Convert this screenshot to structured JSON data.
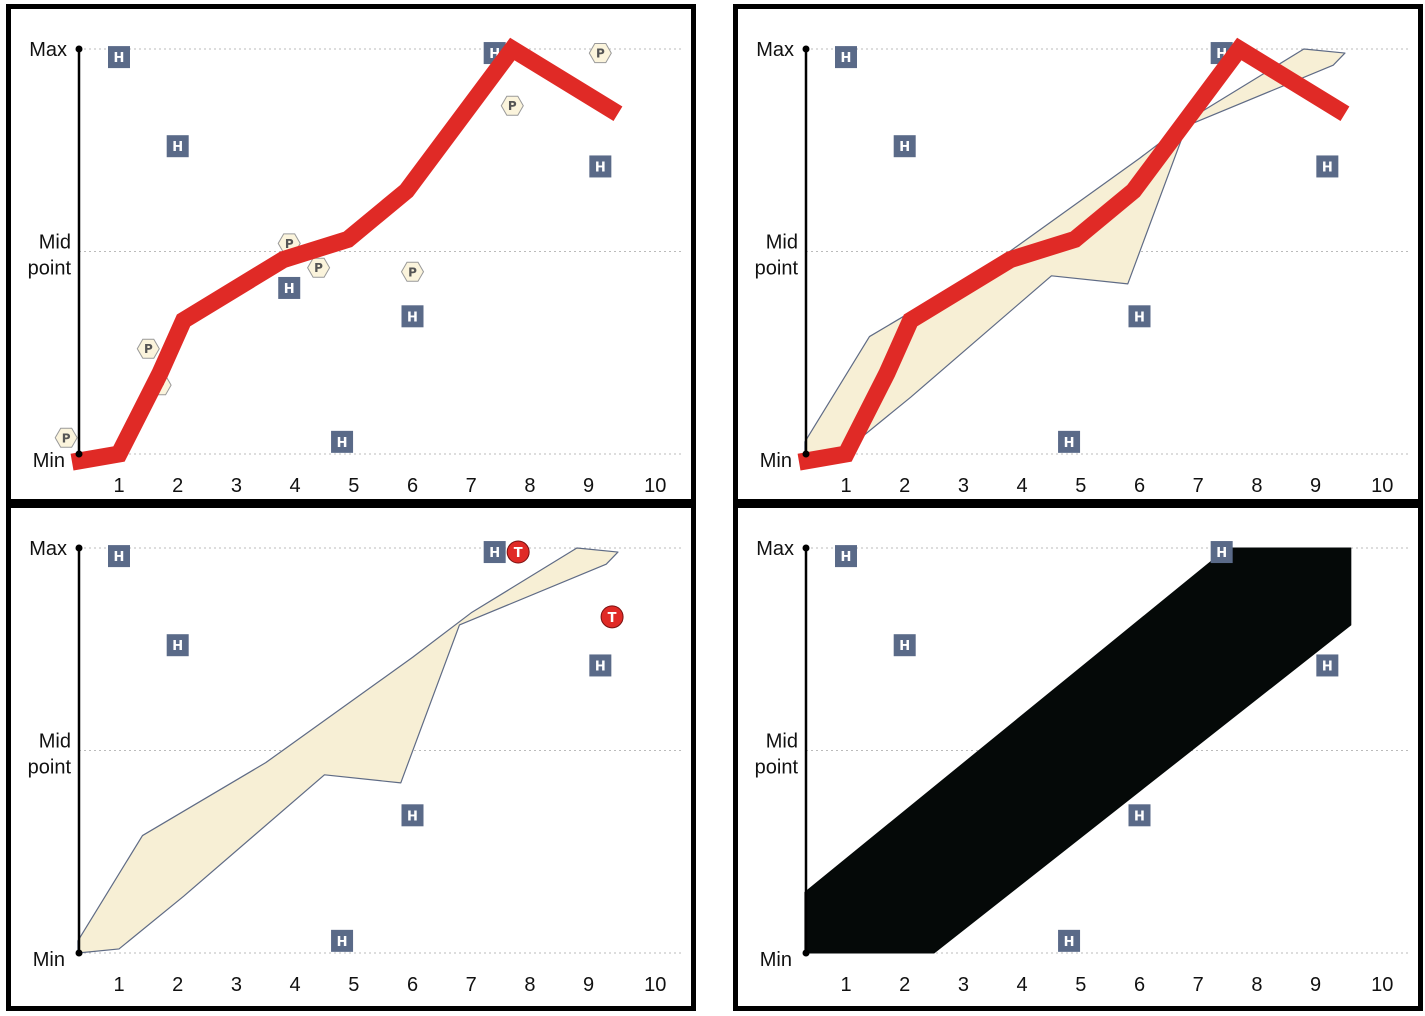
{
  "colors": {
    "band_fill": "#f7efd5",
    "band_stroke": "#5f6b85",
    "red_line": "#e02a26",
    "h_badge": "#5a6a88",
    "hex_fill": "#fbf4dc",
    "hex_stroke": "#999999",
    "t_marker": "#e02a26",
    "solid_band": "#050908",
    "grid": "#bbbbbb"
  },
  "chart_data": [
    {
      "type": "line",
      "position": "top-left",
      "title": "",
      "x": [
        1,
        2,
        3,
        4,
        5,
        6,
        7,
        8,
        9,
        10
      ],
      "xlim": [
        0.3,
        10.3
      ],
      "ylim": [
        0,
        1
      ],
      "grid": true,
      "y_tick_labels": [
        "Min",
        "Mid point",
        "Max"
      ],
      "y_tick_values": [
        0,
        0.5,
        1
      ],
      "series": [
        {
          "kind": "thick-line",
          "points": [
            [
              0.2,
              -0.02
            ],
            [
              1.0,
              0.0
            ],
            [
              1.7,
              0.2
            ],
            [
              2.1,
              0.33
            ],
            [
              3.8,
              0.48
            ],
            [
              4.9,
              0.53
            ],
            [
              5.9,
              0.65
            ],
            [
              7.7,
              1.0
            ],
            [
              9.5,
              0.84
            ]
          ]
        }
      ],
      "h_markers": [
        [
          1.0,
          0.98
        ],
        [
          2.0,
          0.76
        ],
        [
          3.9,
          0.41
        ],
        [
          4.8,
          0.03
        ],
        [
          6.0,
          0.34
        ],
        [
          7.4,
          0.99
        ],
        [
          9.2,
          0.71
        ]
      ],
      "p_markers": [
        [
          0.1,
          0.04
        ],
        [
          1.5,
          0.26
        ],
        [
          1.7,
          0.17
        ],
        [
          3.9,
          0.52
        ],
        [
          4.4,
          0.46
        ],
        [
          6.0,
          0.45
        ],
        [
          7.7,
          0.86
        ],
        [
          9.2,
          0.99
        ]
      ],
      "t_markers": []
    },
    {
      "type": "area",
      "position": "top-right",
      "title": "",
      "x": [
        1,
        2,
        3,
        4,
        5,
        6,
        7,
        8,
        9,
        10
      ],
      "xlim": [
        0.3,
        10.3
      ],
      "ylim": [
        0,
        1
      ],
      "grid": true,
      "y_tick_labels": [
        "Min",
        "Mid point",
        "Max"
      ],
      "y_tick_values": [
        0,
        0.5,
        1
      ],
      "series": [
        {
          "kind": "band",
          "upper": [
            [
              0.3,
              0.03
            ],
            [
              1.4,
              0.29
            ],
            [
              3.5,
              0.47
            ],
            [
              6.0,
              0.73
            ],
            [
              7.0,
              0.84
            ],
            [
              8.8,
              1.0
            ],
            [
              9.5,
              0.99
            ]
          ],
          "lower": [
            [
              0.3,
              0.0
            ],
            [
              1.0,
              0.01
            ],
            [
              2.1,
              0.14
            ],
            [
              4.5,
              0.44
            ],
            [
              5.8,
              0.42
            ],
            [
              6.8,
              0.81
            ],
            [
              9.3,
              0.96
            ]
          ]
        },
        {
          "kind": "thick-line",
          "points": [
            [
              0.2,
              -0.02
            ],
            [
              1.0,
              0.0
            ],
            [
              1.7,
              0.2
            ],
            [
              2.1,
              0.33
            ],
            [
              3.8,
              0.48
            ],
            [
              4.9,
              0.53
            ],
            [
              5.9,
              0.65
            ],
            [
              7.7,
              1.0
            ],
            [
              9.5,
              0.84
            ]
          ]
        }
      ],
      "h_markers": [
        [
          1.0,
          0.98
        ],
        [
          2.0,
          0.76
        ],
        [
          4.8,
          0.03
        ],
        [
          6.0,
          0.34
        ],
        [
          7.4,
          0.99
        ],
        [
          9.2,
          0.71
        ]
      ],
      "p_markers": [],
      "t_markers": []
    },
    {
      "type": "area",
      "position": "bottom-left",
      "title": "",
      "x": [
        1,
        2,
        3,
        4,
        5,
        6,
        7,
        8,
        9,
        10
      ],
      "xlim": [
        0.3,
        10.3
      ],
      "ylim": [
        0,
        1
      ],
      "grid": true,
      "y_tick_labels": [
        "Min",
        "Mid point",
        "Max"
      ],
      "y_tick_values": [
        0,
        0.5,
        1
      ],
      "series": [
        {
          "kind": "band",
          "upper": [
            [
              0.3,
              0.03
            ],
            [
              1.4,
              0.29
            ],
            [
              3.5,
              0.47
            ],
            [
              6.0,
              0.73
            ],
            [
              7.0,
              0.84
            ],
            [
              8.8,
              1.0
            ],
            [
              9.5,
              0.99
            ]
          ],
          "lower": [
            [
              0.3,
              0.0
            ],
            [
              1.0,
              0.01
            ],
            [
              2.1,
              0.14
            ],
            [
              4.5,
              0.44
            ],
            [
              5.8,
              0.42
            ],
            [
              6.8,
              0.81
            ],
            [
              9.3,
              0.96
            ]
          ]
        }
      ],
      "h_markers": [
        [
          1.0,
          0.98
        ],
        [
          2.0,
          0.76
        ],
        [
          4.8,
          0.03
        ],
        [
          6.0,
          0.34
        ],
        [
          7.4,
          0.99
        ],
        [
          9.2,
          0.71
        ]
      ],
      "p_markers": [],
      "t_markers": [
        [
          7.8,
          0.99
        ],
        [
          9.4,
          0.83
        ]
      ]
    },
    {
      "type": "area",
      "position": "bottom-right",
      "title": "",
      "x": [
        1,
        2,
        3,
        4,
        5,
        6,
        7,
        8,
        9,
        10
      ],
      "xlim": [
        0.3,
        10.3
      ],
      "ylim": [
        0,
        1
      ],
      "grid": true,
      "y_tick_labels": [
        "Min",
        "Mid point",
        "Max"
      ],
      "y_tick_values": [
        0,
        0.5,
        1
      ],
      "series": [
        {
          "kind": "solid-band",
          "upper": [
            [
              0.3,
              0.15
            ],
            [
              7.5,
              1.0
            ],
            [
              9.6,
              1.0
            ]
          ],
          "lower": [
            [
              0.3,
              0.0
            ],
            [
              2.5,
              0.0
            ],
            [
              9.6,
              0.81
            ]
          ]
        }
      ],
      "h_markers": [
        [
          1.0,
          0.98
        ],
        [
          2.0,
          0.76
        ],
        [
          4.8,
          0.03
        ],
        [
          6.0,
          0.34
        ],
        [
          7.4,
          0.99
        ],
        [
          9.2,
          0.71
        ]
      ],
      "p_markers": [],
      "t_markers": []
    }
  ],
  "labels": {
    "y_max": "Max",
    "y_mid_line1": "Mid",
    "y_mid_line2": "point",
    "y_min": "Min",
    "x_ticks": [
      "1",
      "2",
      "3",
      "4",
      "5",
      "6",
      "7",
      "8",
      "9",
      "10"
    ],
    "h_marker": "H",
    "p_marker": "P",
    "t_marker": "T"
  }
}
